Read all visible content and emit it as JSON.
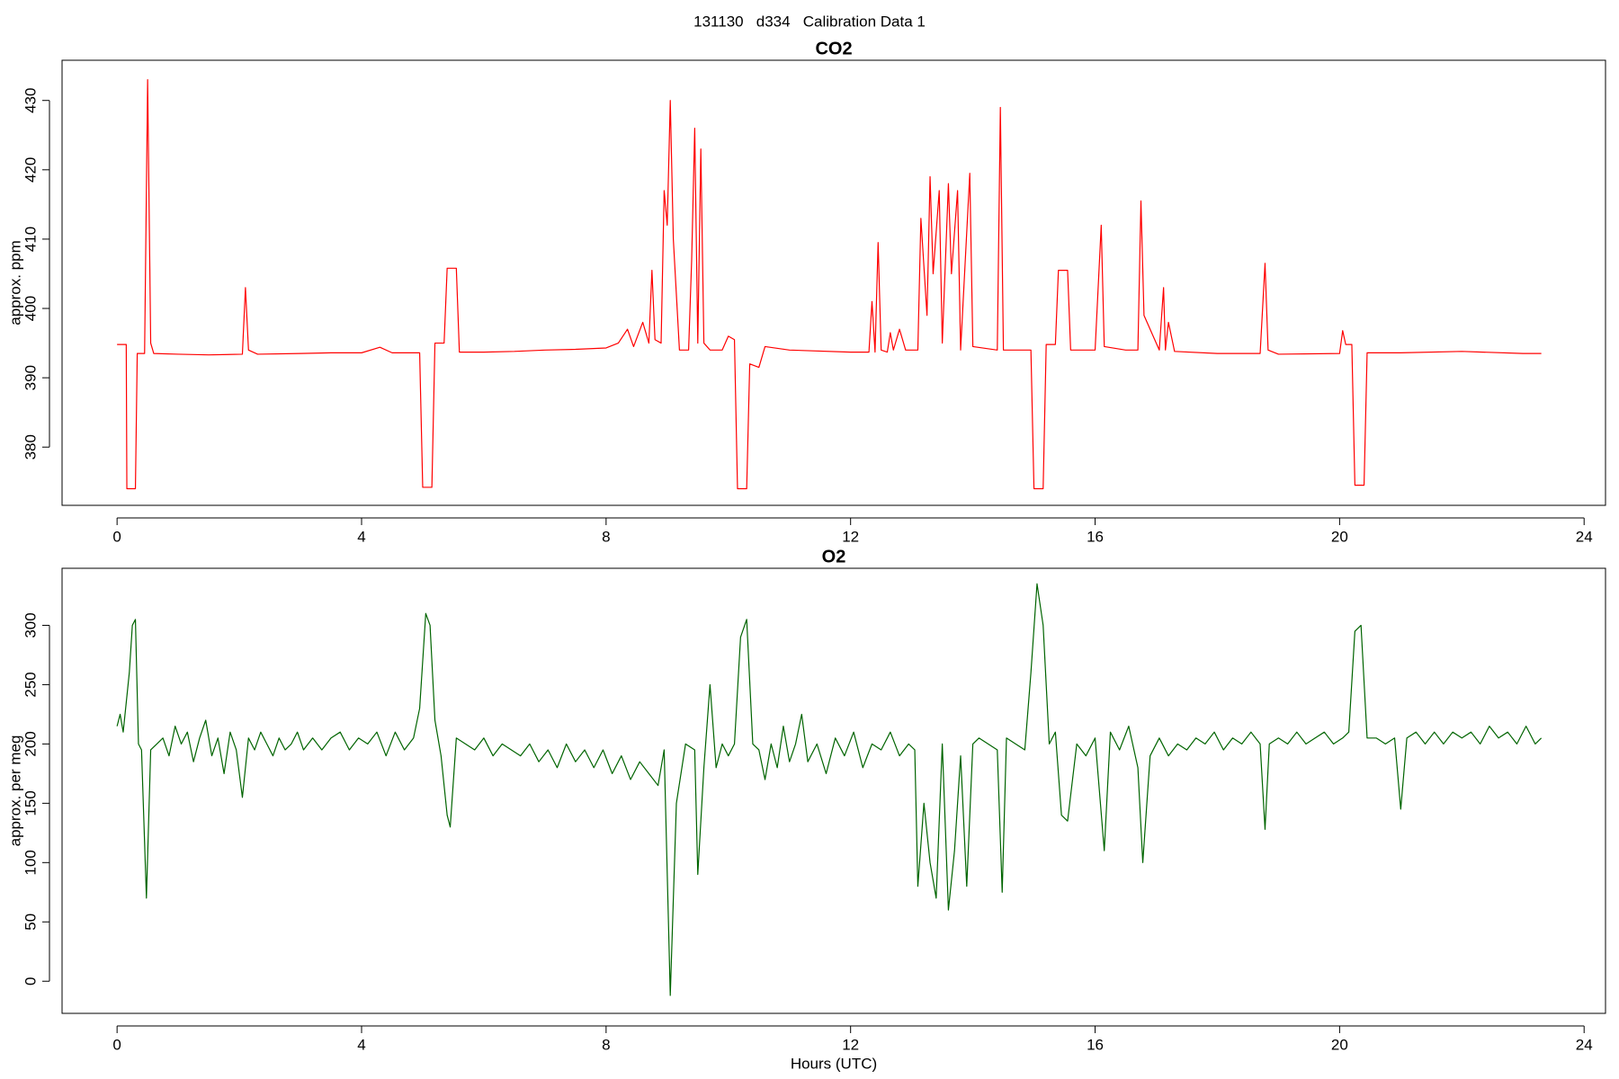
{
  "title": "131130   d334   Calibration Data 1",
  "chart_data": [
    {
      "type": "line",
      "title": "CO2",
      "ylabel": "approx. ppm",
      "color": "#ff0000",
      "xlim": [
        -0.9,
        24.35
      ],
      "ylim": [
        371.6,
        435.8
      ],
      "xticks": [
        0,
        4,
        8,
        12,
        16,
        20,
        24
      ],
      "yticks": [
        380,
        390,
        400,
        410,
        420,
        430
      ],
      "x": [
        0.0,
        0.15,
        0.16,
        0.3,
        0.33,
        0.45,
        0.5,
        0.55,
        0.6,
        1.0,
        1.5,
        2.05,
        2.1,
        2.15,
        2.3,
        3.0,
        3.5,
        4.0,
        4.3,
        4.5,
        4.95,
        5.0,
        5.15,
        5.2,
        5.35,
        5.4,
        5.55,
        5.6,
        6.0,
        6.5,
        7.0,
        7.5,
        8.0,
        8.2,
        8.35,
        8.45,
        8.6,
        8.7,
        8.75,
        8.8,
        8.9,
        8.95,
        9.0,
        9.05,
        9.1,
        9.2,
        9.35,
        9.4,
        9.45,
        9.5,
        9.55,
        9.6,
        9.7,
        9.9,
        10.0,
        10.1,
        10.15,
        10.3,
        10.35,
        10.5,
        10.6,
        11.0,
        12.0,
        12.3,
        12.35,
        12.4,
        12.45,
        12.5,
        12.6,
        12.65,
        12.7,
        12.8,
        12.9,
        13.1,
        13.15,
        13.25,
        13.3,
        13.35,
        13.45,
        13.5,
        13.6,
        13.65,
        13.75,
        13.8,
        13.95,
        14.0,
        14.4,
        14.45,
        14.5,
        14.8,
        14.95,
        15.0,
        15.15,
        15.2,
        15.35,
        15.4,
        15.55,
        15.6,
        16.0,
        16.1,
        16.15,
        16.5,
        16.7,
        16.75,
        16.8,
        16.95,
        17.05,
        17.12,
        17.15,
        17.2,
        17.3,
        18.0,
        18.7,
        18.78,
        18.83,
        19.0,
        20.0,
        20.05,
        20.1,
        20.2,
        20.25,
        20.4,
        20.45,
        21.0,
        22.0,
        23.0,
        23.3
      ],
      "values": [
        394.8,
        394.8,
        374,
        374,
        393.5,
        393.5,
        433,
        395,
        393.5,
        393.4,
        393.3,
        393.4,
        403,
        394,
        393.4,
        393.5,
        393.6,
        393.6,
        394.4,
        393.6,
        393.6,
        374.2,
        374.2,
        395,
        395,
        405.8,
        405.8,
        393.7,
        393.7,
        393.8,
        394,
        394.1,
        394.3,
        395,
        397,
        394.5,
        398,
        395,
        405.5,
        395.5,
        395,
        417,
        412,
        430,
        410,
        394,
        394,
        407,
        426,
        395,
        423,
        395,
        394,
        394,
        396,
        395.5,
        374,
        374,
        392,
        391.5,
        394.5,
        394,
        393.7,
        393.7,
        401,
        393.7,
        409.5,
        394,
        393.7,
        396.5,
        394,
        397,
        394,
        394,
        413,
        399,
        419,
        405,
        417,
        395,
        418,
        405,
        417,
        394,
        419.5,
        394.5,
        394,
        429,
        394,
        394,
        394,
        374,
        374,
        394.8,
        394.8,
        405.5,
        405.5,
        394,
        394,
        412,
        394.5,
        394,
        394,
        415.5,
        399,
        396,
        394,
        403,
        394,
        398,
        393.8,
        393.5,
        393.5,
        406.5,
        394,
        393.4,
        393.5,
        396.8,
        394.8,
        394.8,
        374.5,
        374.5,
        393.6,
        393.6,
        393.8,
        393.5,
        393.5
      ]
    },
    {
      "type": "line",
      "title": "O2",
      "ylabel": "approx. per meg",
      "xlabel": "Hours (UTC)",
      "color": "#006400",
      "xlim": [
        -0.9,
        24.35
      ],
      "ylim": [
        -27.1,
        348.1
      ],
      "xticks": [
        0,
        4,
        8,
        12,
        16,
        20,
        24
      ],
      "yticks": [
        0,
        50,
        100,
        150,
        200,
        250,
        300
      ],
      "x": [
        0.0,
        0.05,
        0.1,
        0.2,
        0.25,
        0.3,
        0.35,
        0.4,
        0.48,
        0.55,
        0.65,
        0.75,
        0.85,
        0.95,
        1.05,
        1.15,
        1.25,
        1.35,
        1.45,
        1.55,
        1.65,
        1.75,
        1.85,
        1.95,
        2.05,
        2.15,
        2.25,
        2.35,
        2.45,
        2.55,
        2.65,
        2.75,
        2.85,
        2.95,
        3.05,
        3.2,
        3.35,
        3.5,
        3.65,
        3.8,
        3.95,
        4.1,
        4.25,
        4.4,
        4.55,
        4.7,
        4.85,
        4.95,
        5.05,
        5.12,
        5.2,
        5.3,
        5.4,
        5.45,
        5.55,
        5.7,
        5.85,
        6.0,
        6.15,
        6.3,
        6.45,
        6.6,
        6.75,
        6.9,
        7.05,
        7.2,
        7.35,
        7.5,
        7.65,
        7.8,
        7.95,
        8.1,
        8.25,
        8.4,
        8.55,
        8.7,
        8.85,
        8.95,
        9.05,
        9.15,
        9.3,
        9.45,
        9.5,
        9.6,
        9.7,
        9.8,
        9.9,
        10.0,
        10.1,
        10.2,
        10.3,
        10.4,
        10.5,
        10.6,
        10.7,
        10.8,
        10.9,
        11.0,
        11.1,
        11.2,
        11.3,
        11.45,
        11.6,
        11.75,
        11.9,
        12.05,
        12.2,
        12.35,
        12.5,
        12.65,
        12.8,
        12.95,
        13.05,
        13.1,
        13.2,
        13.3,
        13.4,
        13.5,
        13.6,
        13.7,
        13.8,
        13.9,
        14.0,
        14.1,
        14.25,
        14.4,
        14.48,
        14.55,
        14.7,
        14.85,
        14.95,
        15.05,
        15.15,
        15.25,
        15.35,
        15.45,
        15.55,
        15.7,
        15.85,
        16.0,
        16.15,
        16.25,
        16.4,
        16.55,
        16.7,
        16.78,
        16.9,
        17.05,
        17.2,
        17.35,
        17.5,
        17.65,
        17.8,
        17.95,
        18.1,
        18.25,
        18.4,
        18.55,
        18.7,
        18.78,
        18.85,
        19.0,
        19.15,
        19.3,
        19.45,
        19.6,
        19.75,
        19.9,
        20.05,
        20.15,
        20.25,
        20.35,
        20.45,
        20.6,
        20.75,
        20.9,
        21.0,
        21.1,
        21.25,
        21.4,
        21.55,
        21.7,
        21.85,
        22.0,
        22.15,
        22.3,
        22.45,
        22.6,
        22.75,
        22.9,
        23.05,
        23.2,
        23.3
      ],
      "values": [
        215,
        225,
        210,
        260,
        300,
        305,
        200,
        195,
        70,
        195,
        200,
        205,
        190,
        215,
        200,
        210,
        185,
        205,
        220,
        190,
        205,
        175,
        210,
        195,
        155,
        205,
        195,
        210,
        200,
        190,
        205,
        195,
        200,
        210,
        195,
        205,
        195,
        205,
        210,
        195,
        205,
        200,
        210,
        190,
        210,
        195,
        205,
        230,
        310,
        300,
        220,
        190,
        140,
        130,
        205,
        200,
        195,
        205,
        190,
        200,
        195,
        190,
        200,
        185,
        195,
        180,
        200,
        185,
        195,
        180,
        195,
        175,
        190,
        170,
        185,
        175,
        165,
        195,
        -12,
        150,
        200,
        195,
        90,
        180,
        250,
        180,
        200,
        190,
        200,
        290,
        305,
        200,
        195,
        170,
        200,
        180,
        215,
        185,
        200,
        225,
        185,
        200,
        175,
        205,
        190,
        210,
        180,
        200,
        195,
        210,
        190,
        200,
        195,
        80,
        150,
        100,
        70,
        200,
        60,
        110,
        190,
        80,
        200,
        205,
        200,
        195,
        75,
        205,
        200,
        195,
        260,
        335,
        300,
        200,
        210,
        140,
        135,
        200,
        190,
        205,
        110,
        210,
        195,
        215,
        180,
        100,
        190,
        205,
        190,
        200,
        195,
        205,
        200,
        210,
        195,
        205,
        200,
        210,
        200,
        128,
        200,
        205,
        200,
        210,
        200,
        205,
        210,
        200,
        205,
        210,
        295,
        300,
        205,
        205,
        200,
        205,
        145,
        205,
        210,
        200,
        210,
        200,
        210,
        205,
        210,
        200,
        215,
        205,
        210,
        200,
        215,
        200,
        205
      ]
    }
  ]
}
